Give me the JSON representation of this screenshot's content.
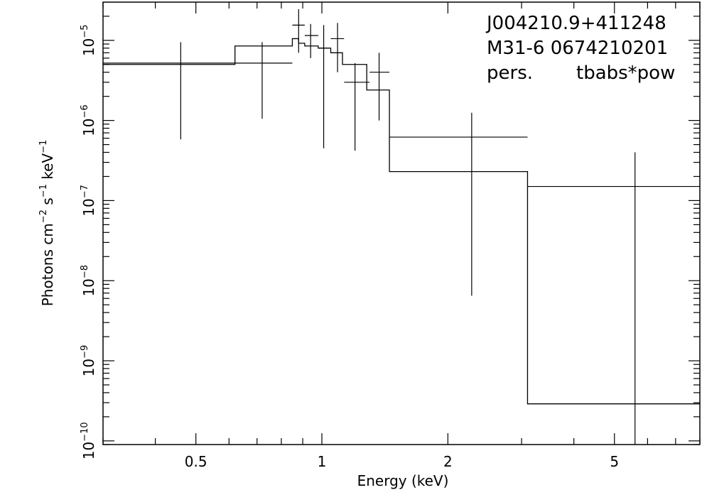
{
  "chart_data": {
    "type": "scatter",
    "xlabel": "Energy (keV)",
    "ylabel_base": "Photons cm",
    "ylabel_exp1": "−2",
    "ylabel_mid": " s",
    "ylabel_exp2": "−1",
    "ylabel_mid2": " keV",
    "ylabel_exp3": "−1",
    "xscale": "log",
    "yscale": "log",
    "xlim": [
      0.3,
      8.0
    ],
    "ylim": [
      9e-11,
      3e-05
    ],
    "xticks": [
      {
        "value": 0.5,
        "label": "0.5"
      },
      {
        "value": 1,
        "label": "1"
      },
      {
        "value": 2,
        "label": "2"
      },
      {
        "value": 5,
        "label": "5"
      }
    ],
    "yticks": [
      {
        "value": 1e-05,
        "base": "10",
        "exp": "−5"
      },
      {
        "value": 1e-06,
        "base": "10",
        "exp": "−6"
      },
      {
        "value": 1e-07,
        "base": "10",
        "exp": "−7"
      },
      {
        "value": 1e-08,
        "base": "10",
        "exp": "−8"
      },
      {
        "value": 1e-09,
        "base": "10",
        "exp": "−9"
      },
      {
        "value": 1e-10,
        "base": "10",
        "exp": "−10"
      }
    ],
    "annotations": [
      "J004210.9+411248",
      "M31-6 0674210201",
      "pers.",
      "tbabs*pow"
    ],
    "data_points": [
      {
        "x": 0.46,
        "xlo": 0.3,
        "xhi": 0.62,
        "y": 5.2e-06,
        "ylo": 5.8e-07,
        "yhi": 9.5e-06
      },
      {
        "x": 0.72,
        "xlo": 0.62,
        "xhi": 0.85,
        "y": 5.2e-06,
        "ylo": 1.05e-06,
        "yhi": 9.5e-06
      },
      {
        "x": 0.88,
        "xlo": 0.85,
        "xhi": 0.91,
        "y": 1.55e-05,
        "ylo": 7e-06,
        "yhi": 2.45e-05
      },
      {
        "x": 0.94,
        "xlo": 0.91,
        "xhi": 0.98,
        "y": 1.15e-05,
        "ylo": 6e-06,
        "yhi": 1.6e-05
      },
      {
        "x": 1.01,
        "xlo": 0.98,
        "xhi": 1.04,
        "y": 8e-06,
        "ylo": 4.5e-07,
        "yhi": 1.55e-05
      },
      {
        "x": 1.09,
        "xlo": 1.05,
        "xhi": 1.13,
        "y": 1.05e-05,
        "ylo": 4e-06,
        "yhi": 1.65e-05
      },
      {
        "x": 1.2,
        "xlo": 1.13,
        "xhi": 1.3,
        "y": 3e-06,
        "ylo": 4.2e-07,
        "yhi": 5.2e-06
      },
      {
        "x": 1.37,
        "xlo": 1.3,
        "xhi": 1.45,
        "y": 4e-06,
        "ylo": 1e-06,
        "yhi": 7e-06
      },
      {
        "x": 2.28,
        "xlo": 1.45,
        "xhi": 3.1,
        "y": 6.2e-07,
        "ylo": 6.5e-09,
        "yhi": 1.25e-06
      },
      {
        "x": 5.6,
        "xlo": 3.1,
        "xhi": 8.0,
        "y": 1.5e-07,
        "ylo": 9e-11,
        "yhi": 4e-07
      }
    ],
    "model_steps": [
      {
        "xlo": 0.3,
        "xhi": 0.62,
        "y": 5e-06
      },
      {
        "xlo": 0.62,
        "xhi": 0.85,
        "y": 8.5e-06
      },
      {
        "xlo": 0.85,
        "xhi": 0.88,
        "y": 1.05e-05
      },
      {
        "xlo": 0.88,
        "xhi": 0.91,
        "y": 9.2e-06
      },
      {
        "xlo": 0.91,
        "xhi": 0.98,
        "y": 8.5e-06
      },
      {
        "xlo": 0.98,
        "xhi": 1.05,
        "y": 8e-06
      },
      {
        "xlo": 1.05,
        "xhi": 1.12,
        "y": 7e-06
      },
      {
        "xlo": 1.12,
        "xhi": 1.28,
        "y": 5e-06
      },
      {
        "xlo": 1.28,
        "xhi": 1.45,
        "y": 2.4e-06
      },
      {
        "xlo": 1.45,
        "xhi": 3.1,
        "y": 2.3e-07
      },
      {
        "xlo": 3.1,
        "xhi": 8.0,
        "y": 2.9e-10
      }
    ]
  }
}
